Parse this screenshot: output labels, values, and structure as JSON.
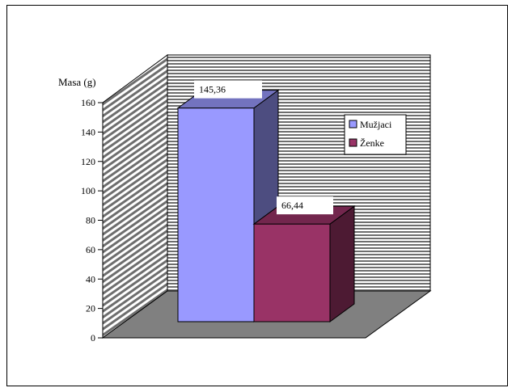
{
  "chart_data": {
    "type": "bar",
    "style": "3d",
    "ylabel": "Masa (g)",
    "ylim": [
      0,
      160
    ],
    "yticks": [
      0,
      20,
      40,
      60,
      80,
      100,
      120,
      140,
      160
    ],
    "ytick_labels": [
      "0",
      "20",
      "40",
      "60",
      "80",
      "100",
      "120",
      "140",
      "160"
    ],
    "grid": false,
    "legend_position": "right",
    "series": [
      {
        "name": "Mužjaci",
        "value": 145.36,
        "label": "145,36",
        "color": "#9999FF"
      },
      {
        "name": "Ženke",
        "value": 66.44,
        "label": "66,44",
        "color": "#993366"
      }
    ],
    "back_wall_color": "#C0C0C0",
    "floor_color": "#808080"
  }
}
